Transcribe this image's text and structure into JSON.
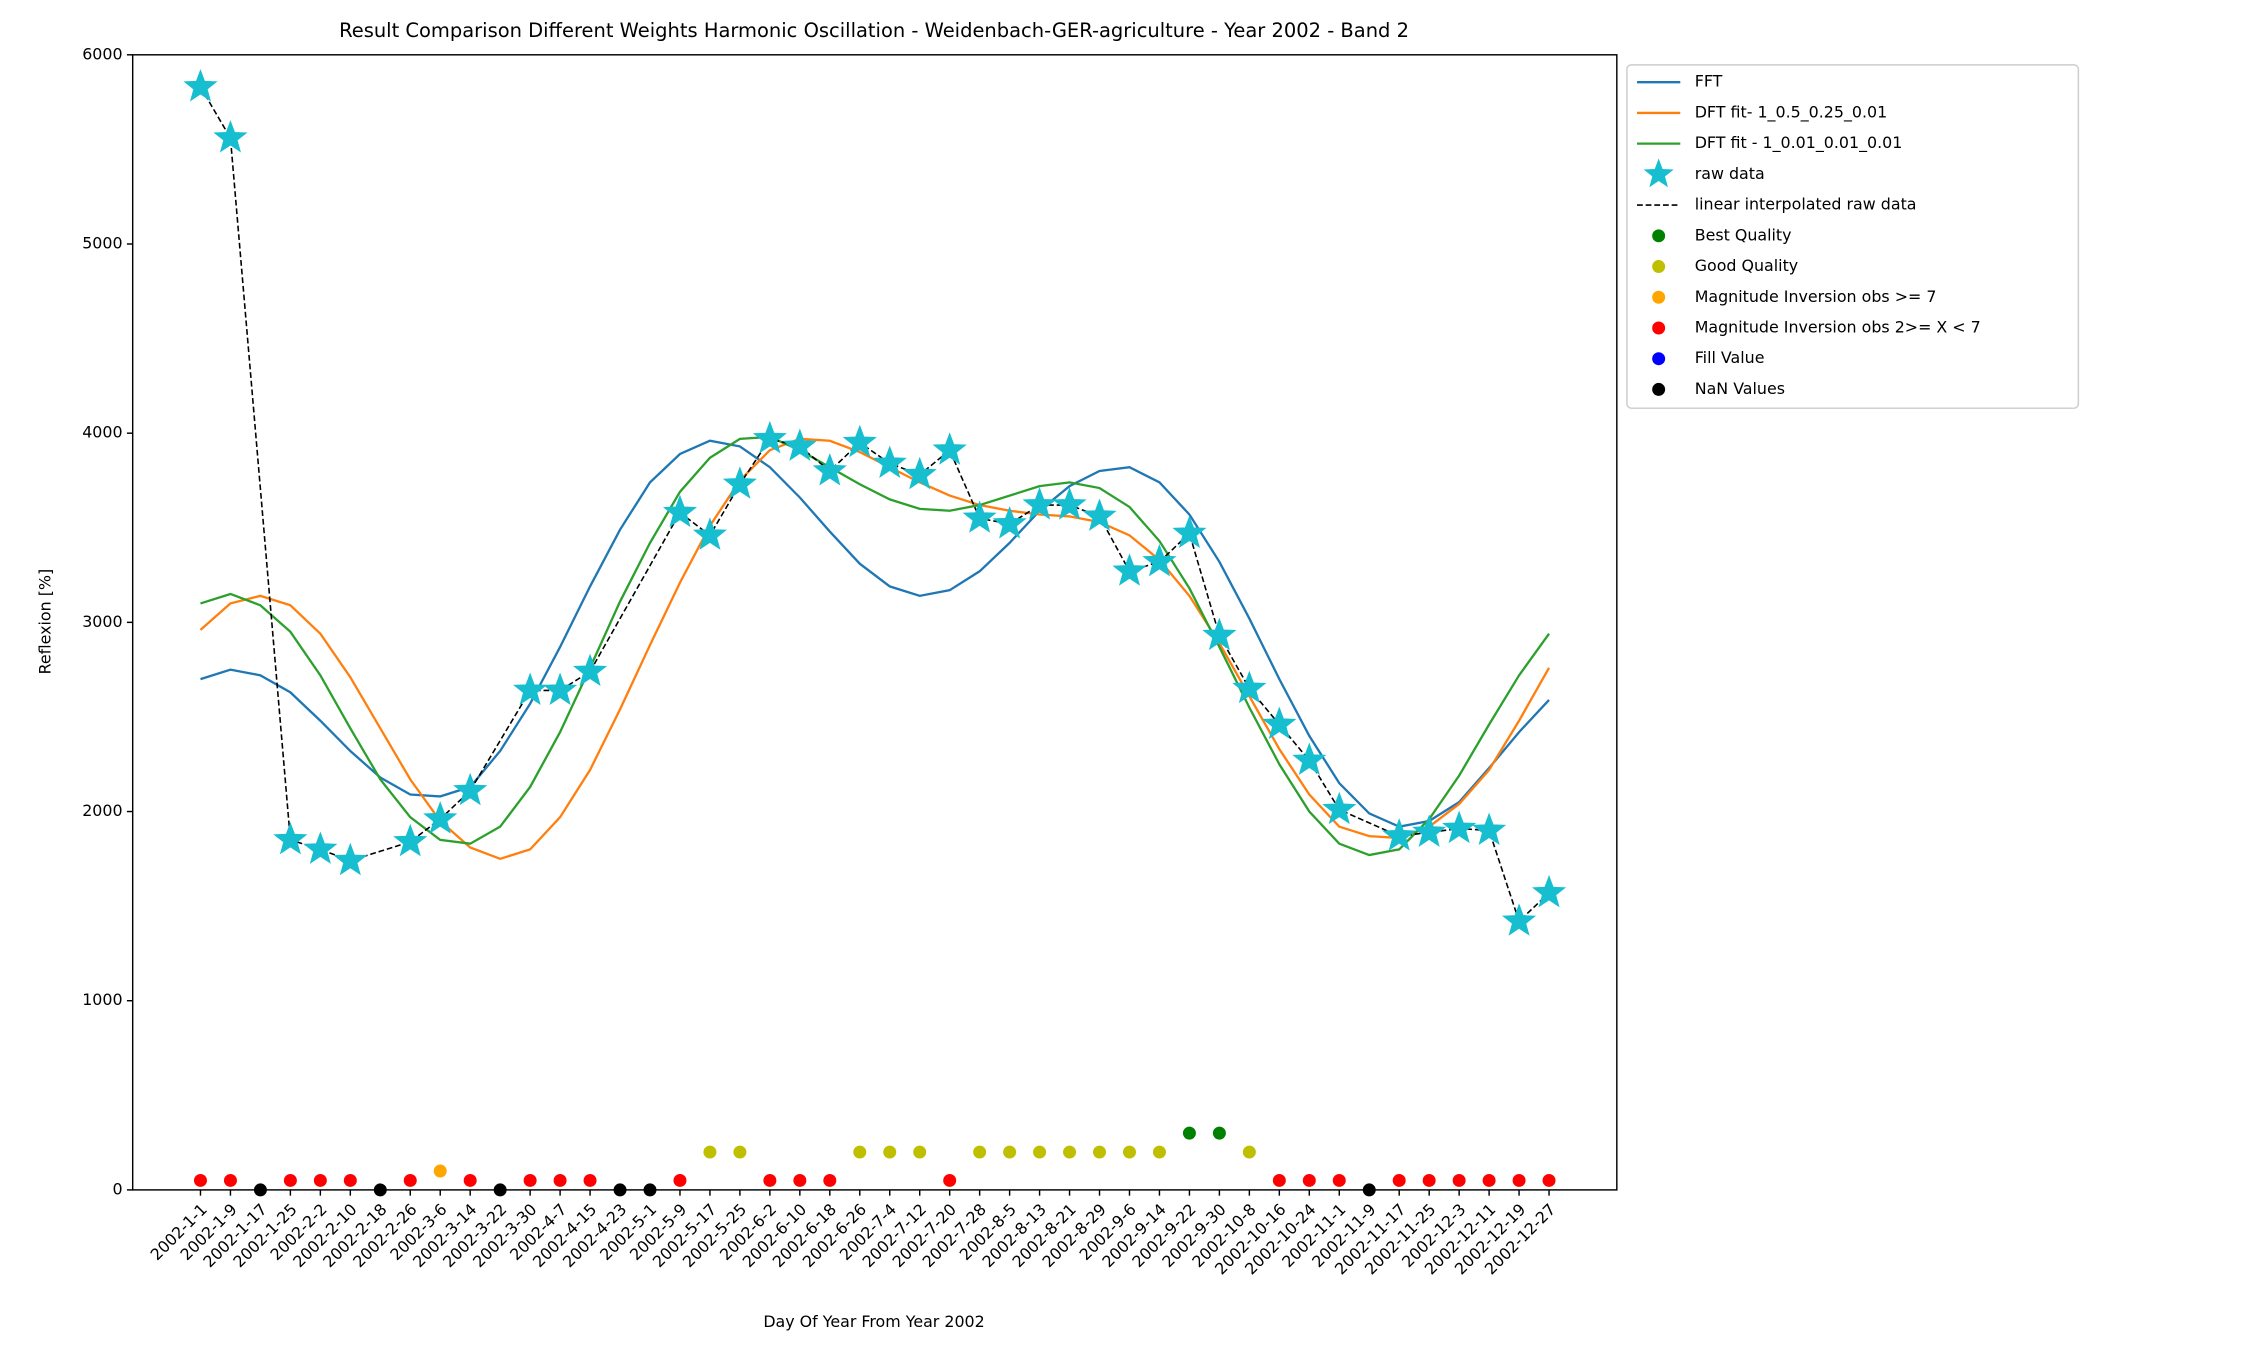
{
  "chart_data": {
    "type": "line",
    "title": "Result Comparison Different Weights Harmonic Oscillation - Weidenbach-GER-agriculture - Year 2002 - Band 2",
    "x_label": "Day Of Year From Year 2002",
    "y_label": "Reflexion [%]",
    "categories": [
      "2002-1-1",
      "2002-1-9",
      "2002-1-17",
      "2002-1-25",
      "2002-2-2",
      "2002-2-10",
      "2002-2-18",
      "2002-2-26",
      "2002-3-6",
      "2002-3-14",
      "2002-3-22",
      "2002-3-30",
      "2002-4-7",
      "2002-4-15",
      "2002-4-23",
      "2002-5-1",
      "2002-5-9",
      "2002-5-17",
      "2002-5-25",
      "2002-6-2",
      "2002-6-10",
      "2002-6-18",
      "2002-6-26",
      "2002-7-4",
      "2002-7-12",
      "2002-7-20",
      "2002-7-28",
      "2002-8-5",
      "2002-8-13",
      "2002-8-21",
      "2002-8-29",
      "2002-9-6",
      "2002-9-14",
      "2002-9-22",
      "2002-9-30",
      "2002-10-8",
      "2002-10-16",
      "2002-10-24",
      "2002-11-1",
      "2002-11-9",
      "2002-11-17",
      "2002-11-25",
      "2002-12-3",
      "2002-12-11",
      "2002-12-19",
      "2002-12-27"
    ],
    "ylim": [
      0,
      6000
    ],
    "yticks": [
      0,
      1000,
      2000,
      3000,
      4000,
      5000,
      6000
    ],
    "legend": "upper-right-outside",
    "series": [
      {
        "name": "FFT",
        "color": "#1f77b4",
        "style": "line",
        "values": [
          2700,
          2750,
          2720,
          2630,
          2480,
          2320,
          2180,
          2090,
          2080,
          2130,
          2320,
          2570,
          2870,
          3190,
          3490,
          3740,
          3890,
          3960,
          3930,
          3820,
          3660,
          3480,
          3310,
          3190,
          3140,
          3170,
          3270,
          3420,
          3590,
          3720,
          3800,
          3820,
          3740,
          3570,
          3320,
          3020,
          2700,
          2400,
          2150,
          1990,
          1920,
          1950,
          2050,
          2230,
          2420,
          2590
        ]
      },
      {
        "name": "DFT fit- 1_0.5_0.25_0.01",
        "color": "#ff7f0e",
        "style": "line",
        "values": [
          2960,
          3100,
          3140,
          3090,
          2940,
          2710,
          2440,
          2170,
          1950,
          1810,
          1750,
          1800,
          1970,
          2220,
          2540,
          2880,
          3210,
          3510,
          3750,
          3910,
          3970,
          3960,
          3900,
          3820,
          3740,
          3670,
          3620,
          3590,
          3570,
          3560,
          3530,
          3460,
          3330,
          3140,
          2890,
          2610,
          2330,
          2090,
          1920,
          1870,
          1860,
          1920,
          2040,
          2220,
          2480,
          2760
        ]
      },
      {
        "name": "DFT fit - 1_0.01_0.01_0.01",
        "color": "#2ca02c",
        "style": "line",
        "values": [
          3100,
          3150,
          3090,
          2950,
          2720,
          2440,
          2170,
          1970,
          1850,
          1830,
          1920,
          2130,
          2420,
          2760,
          3110,
          3420,
          3690,
          3870,
          3970,
          3980,
          3910,
          3820,
          3730,
          3650,
          3600,
          3590,
          3620,
          3670,
          3720,
          3740,
          3710,
          3610,
          3430,
          3180,
          2870,
          2550,
          2250,
          2000,
          1830,
          1770,
          1800,
          1960,
          2190,
          2460,
          2720,
          2940
        ]
      },
      {
        "name": "raw data",
        "color": "#17becf",
        "style": "star",
        "values": [
          5830,
          5560,
          null,
          1850,
          1800,
          1740,
          null,
          1840,
          1960,
          2110,
          null,
          2640,
          2640,
          2740,
          null,
          null,
          3580,
          3460,
          3730,
          3970,
          3930,
          3800,
          3950,
          3840,
          3780,
          3910,
          3550,
          3520,
          3620,
          3620,
          3560,
          3270,
          3320,
          3470,
          2930,
          2650,
          2460,
          2270,
          2010,
          null,
          1870,
          1890,
          1910,
          1900,
          1420,
          1570
        ]
      },
      {
        "name": "linear interpolated raw data",
        "color": "#000000",
        "style": "dashed",
        "values": [
          5830,
          5560,
          3705,
          1850,
          1800,
          1740,
          1790,
          1840,
          1960,
          2110,
          2375,
          2640,
          2640,
          2740,
          3020,
          3300,
          3580,
          3460,
          3730,
          3970,
          3930,
          3800,
          3950,
          3840,
          3780,
          3910,
          3550,
          3520,
          3620,
          3620,
          3560,
          3270,
          3320,
          3470,
          2930,
          2650,
          2460,
          2270,
          2010,
          1940,
          1870,
          1890,
          1910,
          1900,
          1420,
          1570
        ]
      },
      {
        "name": "Best Quality",
        "color": "#008000",
        "style": "dot",
        "values": [
          null,
          null,
          null,
          null,
          null,
          null,
          null,
          null,
          null,
          null,
          null,
          null,
          null,
          null,
          null,
          null,
          null,
          null,
          null,
          null,
          null,
          null,
          null,
          null,
          null,
          null,
          null,
          null,
          null,
          null,
          null,
          null,
          null,
          300,
          300,
          null,
          null,
          null,
          null,
          null,
          null,
          null,
          null,
          null,
          null,
          null
        ]
      },
      {
        "name": "Good Quality",
        "color": "#bfbf00",
        "style": "dot",
        "values": [
          null,
          null,
          null,
          null,
          null,
          null,
          null,
          null,
          null,
          null,
          null,
          null,
          null,
          null,
          null,
          null,
          null,
          200,
          200,
          null,
          null,
          null,
          200,
          200,
          200,
          null,
          200,
          200,
          200,
          200,
          200,
          200,
          200,
          null,
          null,
          200,
          null,
          null,
          null,
          null,
          null,
          null,
          null,
          null,
          null,
          null
        ]
      },
      {
        "name": "Magnitude Inversion obs >= 7",
        "color": "#ffa500",
        "style": "dot",
        "values": [
          null,
          null,
          null,
          null,
          null,
          null,
          null,
          null,
          100,
          null,
          null,
          null,
          null,
          null,
          null,
          null,
          null,
          null,
          null,
          null,
          null,
          null,
          null,
          null,
          null,
          null,
          null,
          null,
          null,
          null,
          null,
          null,
          null,
          null,
          null,
          null,
          null,
          null,
          null,
          null,
          null,
          null,
          null,
          null,
          null,
          null
        ]
      },
      {
        "name": "Magnitude Inversion obs 2>= X < 7",
        "color": "#ff0000",
        "style": "dot",
        "values": [
          50,
          50,
          null,
          50,
          50,
          50,
          null,
          50,
          null,
          50,
          null,
          50,
          50,
          50,
          null,
          null,
          50,
          null,
          null,
          50,
          50,
          50,
          null,
          null,
          null,
          50,
          null,
          null,
          null,
          null,
          null,
          null,
          null,
          null,
          null,
          null,
          50,
          50,
          50,
          null,
          50,
          50,
          50,
          50,
          50,
          50
        ]
      },
      {
        "name": "Fill Value",
        "color": "#0000ff",
        "style": "dot",
        "values": [
          null,
          null,
          null,
          null,
          null,
          null,
          null,
          null,
          null,
          null,
          null,
          null,
          null,
          null,
          null,
          null,
          null,
          null,
          null,
          null,
          null,
          null,
          null,
          null,
          null,
          null,
          null,
          null,
          null,
          null,
          null,
          null,
          null,
          null,
          null,
          null,
          null,
          null,
          null,
          null,
          null,
          null,
          null,
          null,
          null,
          null
        ]
      },
      {
        "name": "NaN Values",
        "color": "#000000",
        "style": "dot",
        "values": [
          null,
          null,
          0,
          null,
          null,
          null,
          0,
          null,
          null,
          null,
          0,
          null,
          null,
          null,
          0,
          0,
          null,
          null,
          null,
          null,
          null,
          null,
          null,
          null,
          null,
          null,
          null,
          null,
          null,
          null,
          null,
          null,
          null,
          null,
          null,
          null,
          null,
          null,
          null,
          0,
          null,
          null,
          null,
          null,
          null,
          null
        ]
      }
    ]
  }
}
